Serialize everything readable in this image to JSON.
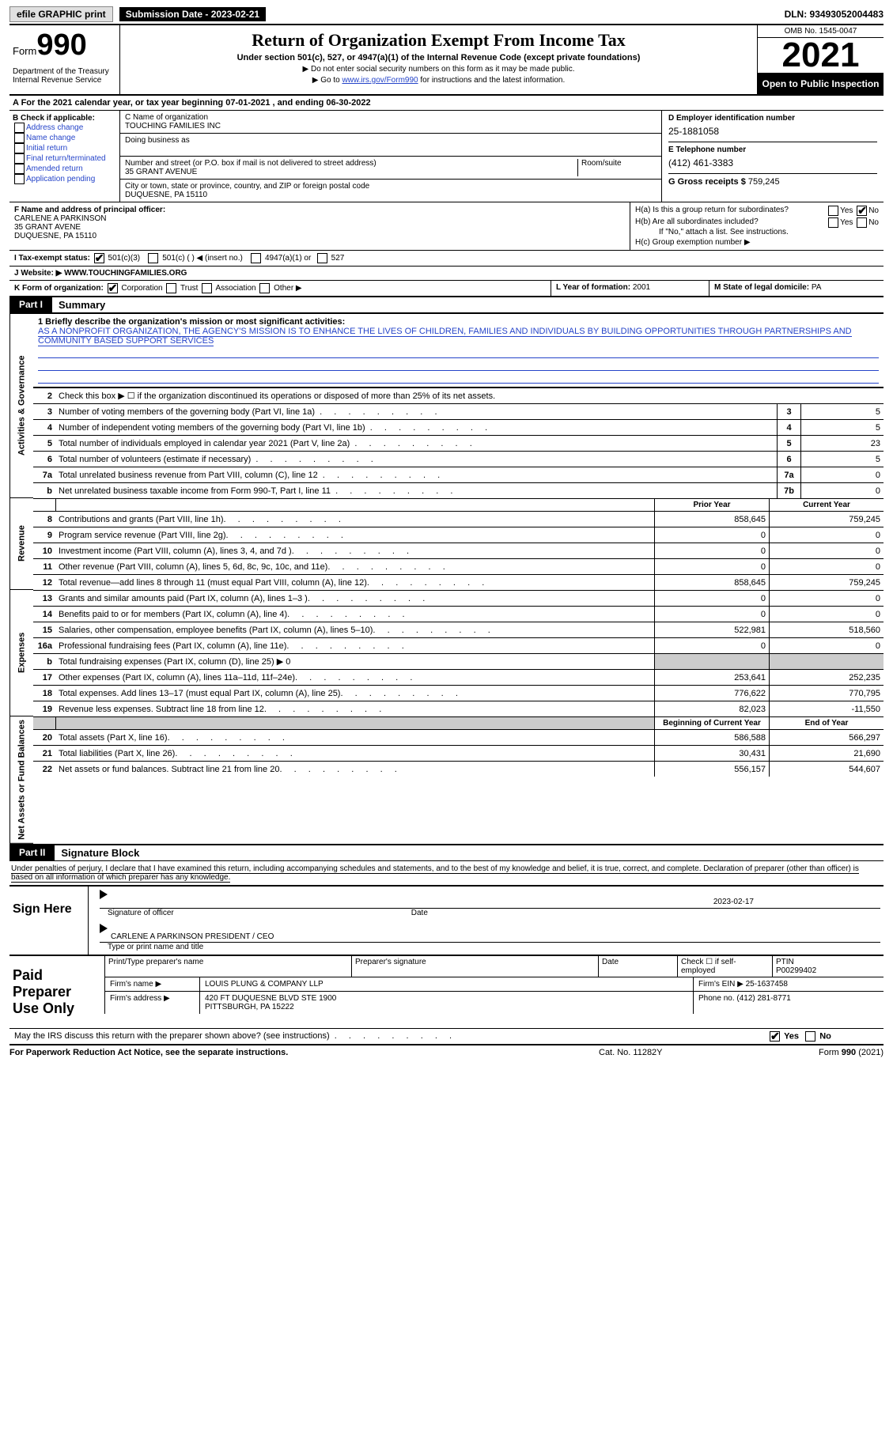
{
  "topbar": {
    "efile": "efile GRAPHIC print",
    "sub_label": "Submission Date - 2023-02-21",
    "dln": "DLN: 93493052004483"
  },
  "header": {
    "form": "Form",
    "num": "990",
    "dept": "Department of the Treasury Internal Revenue Service",
    "title": "Return of Organization Exempt From Income Tax",
    "sub1": "Under section 501(c), 527, or 4947(a)(1) of the Internal Revenue Code (except private foundations)",
    "sub2": "▶ Do not enter social security numbers on this form as it may be made public.",
    "sub3_pre": "▶ Go to ",
    "sub3_link": "www.irs.gov/Form990",
    "sub3_post": " for instructions and the latest information.",
    "omb": "OMB No. 1545-0047",
    "year": "2021",
    "open": "Open to Public Inspection"
  },
  "period": {
    "text_a": "A For the 2021 calendar year, or tax year beginning ",
    "begin": "07-01-2021",
    "text_b": " , and ending ",
    "end": "06-30-2022"
  },
  "colB": {
    "lbl": "B Check if applicable:",
    "i1": "Address change",
    "i2": "Name change",
    "i3": "Initial return",
    "i4": "Final return/terminated",
    "i5": "Amended return",
    "i6": "Application pending"
  },
  "colC": {
    "name_lbl": "C Name of organization",
    "name": "TOUCHING FAMILIES INC",
    "dba_lbl": "Doing business as",
    "addr_lbl": "Number and street (or P.O. box if mail is not delivered to street address)",
    "room_lbl": "Room/suite",
    "addr": "35 GRANT AVENUE",
    "city_lbl": "City or town, state or province, country, and ZIP or foreign postal code",
    "city": "DUQUESNE, PA  15110"
  },
  "colD": {
    "d_lbl": "D Employer identification number",
    "ein": "25-1881058",
    "e_lbl": "E Telephone number",
    "phone": "(412) 461-3383",
    "g_lbl": "G Gross receipts $ ",
    "gross": "759,245"
  },
  "princ": {
    "f_lbl": "F Name and address of principal officer:",
    "name": "CARLENE A PARKINSON",
    "addr1": "35 GRANT AVENE",
    "addr2": "DUQUESNE, PA  15110",
    "ha": "H(a)  Is this a group return for subordinates?",
    "hb": "H(b)  Are all subordinates included?",
    "hb_note": "If \"No,\" attach a list. See instructions.",
    "hc": "H(c)  Group exemption number ▶"
  },
  "taxex": {
    "lbl": "I   Tax-exempt status:",
    "o1": "501(c)(3)",
    "o2": "501(c) (  ) ◀ (insert no.)",
    "o3": "4947(a)(1) or",
    "o4": "527"
  },
  "website": {
    "lbl": "J   Website: ▶  ",
    "val": "WWW.TOUCHINGFAMILIES.ORG"
  },
  "korg": {
    "k": "K Form of organization:",
    "o1": "Corporation",
    "o2": "Trust",
    "o3": "Association",
    "o4": "Other ▶",
    "l": "L Year of formation: ",
    "lval": "2001",
    "m": "M State of legal domicile: ",
    "mval": "PA"
  },
  "part1": {
    "hdr": "Part I",
    "title": "Summary"
  },
  "mission": {
    "lbl": "1   Briefly describe the organization's mission or most significant activities:",
    "txt": "AS A NONPROFIT ORGANIZATION, THE AGENCY'S MISSION IS TO ENHANCE THE LIVES OF CHILDREN, FAMILIES AND INDIVIDUALS BY BUILDING OPPORTUNITIES THROUGH PARTNERSHIPS AND COMMUNITY BASED SUPPORT SERVICES"
  },
  "side": {
    "gov": "Activities & Governance",
    "rev": "Revenue",
    "exp": "Expenses",
    "net": "Net Assets or Fund Balances"
  },
  "lines_a": [
    {
      "n": "2",
      "d": "Check this box ▶ ☐ if the organization discontinued its operations or disposed of more than 25% of its net assets."
    },
    {
      "n": "3",
      "d": "Number of voting members of the governing body (Part VI, line 1a)",
      "b": "3",
      "v": "5"
    },
    {
      "n": "4",
      "d": "Number of independent voting members of the governing body (Part VI, line 1b)",
      "b": "4",
      "v": "5"
    },
    {
      "n": "5",
      "d": "Total number of individuals employed in calendar year 2021 (Part V, line 2a)",
      "b": "5",
      "v": "23"
    },
    {
      "n": "6",
      "d": "Total number of volunteers (estimate if necessary)",
      "b": "6",
      "v": "5"
    },
    {
      "n": "7a",
      "d": "Total unrelated business revenue from Part VIII, column (C), line 12",
      "b": "7a",
      "v": "0"
    },
    {
      "n": "b",
      "d": "Net unrelated business taxable income from Form 990-T, Part I, line 11",
      "b": "7b",
      "v": "0"
    }
  ],
  "hdr_py": "Prior Year",
  "hdr_cy": "Current Year",
  "lines_rev": [
    {
      "n": "8",
      "d": "Contributions and grants (Part VIII, line 1h)",
      "py": "858,645",
      "cy": "759,245"
    },
    {
      "n": "9",
      "d": "Program service revenue (Part VIII, line 2g)",
      "py": "0",
      "cy": "0"
    },
    {
      "n": "10",
      "d": "Investment income (Part VIII, column (A), lines 3, 4, and 7d )",
      "py": "0",
      "cy": "0"
    },
    {
      "n": "11",
      "d": "Other revenue (Part VIII, column (A), lines 5, 6d, 8c, 9c, 10c, and 11e)",
      "py": "0",
      "cy": "0"
    },
    {
      "n": "12",
      "d": "Total revenue—add lines 8 through 11 (must equal Part VIII, column (A), line 12)",
      "py": "858,645",
      "cy": "759,245"
    }
  ],
  "lines_exp": [
    {
      "n": "13",
      "d": "Grants and similar amounts paid (Part IX, column (A), lines 1–3 )",
      "py": "0",
      "cy": "0"
    },
    {
      "n": "14",
      "d": "Benefits paid to or for members (Part IX, column (A), line 4)",
      "py": "0",
      "cy": "0"
    },
    {
      "n": "15",
      "d": "Salaries, other compensation, employee benefits (Part IX, column (A), lines 5–10)",
      "py": "522,981",
      "cy": "518,560"
    },
    {
      "n": "16a",
      "d": "Professional fundraising fees (Part IX, column (A), line 11e)",
      "py": "0",
      "cy": "0"
    },
    {
      "n": "b",
      "d": "Total fundraising expenses (Part IX, column (D), line 25) ▶ 0",
      "grey": true
    },
    {
      "n": "17",
      "d": "Other expenses (Part IX, column (A), lines 11a–11d, 11f–24e)",
      "py": "253,641",
      "cy": "252,235"
    },
    {
      "n": "18",
      "d": "Total expenses. Add lines 13–17 (must equal Part IX, column (A), line 25)",
      "py": "776,622",
      "cy": "770,795"
    },
    {
      "n": "19",
      "d": "Revenue less expenses. Subtract line 18 from line 12",
      "py": "82,023",
      "cy": "-11,550"
    }
  ],
  "hdr_bcy": "Beginning of Current Year",
  "hdr_eoy": "End of Year",
  "lines_net": [
    {
      "n": "20",
      "d": "Total assets (Part X, line 16)",
      "py": "586,588",
      "cy": "566,297"
    },
    {
      "n": "21",
      "d": "Total liabilities (Part X, line 26)",
      "py": "30,431",
      "cy": "21,690"
    },
    {
      "n": "22",
      "d": "Net assets or fund balances. Subtract line 21 from line 20",
      "py": "556,157",
      "cy": "544,607"
    }
  ],
  "part2": {
    "hdr": "Part II",
    "title": "Signature Block"
  },
  "decl": "Under penalties of perjury, I declare that I have examined this return, including accompanying schedules and statements, and to the best of my knowledge and belief, it is true, correct, and complete. Declaration of preparer (other than officer) is based on all information of which preparer has any knowledge.",
  "sign": {
    "lab": "Sign Here",
    "sig_of": "Signature of officer",
    "date_lbl": "Date",
    "date": "2023-02-17",
    "name": "CARLENE A PARKINSON  PRESIDENT / CEO",
    "type": "Type or print name and title"
  },
  "paid": {
    "lab": "Paid Preparer Use Only",
    "h1": "Print/Type preparer's name",
    "h2": "Preparer's signature",
    "h3": "Date",
    "h4": "Check ☐ if self-employed",
    "h5_lbl": "PTIN",
    "h5": "P00299402",
    "firm_lbl": "Firm's name    ▶",
    "firm": "LOUIS PLUNG & COMPANY LLP",
    "ein_lbl": "Firm's EIN ▶ ",
    "ein": "25-1637458",
    "addr_lbl": "Firm's address ▶",
    "addr1": "420 FT DUQUESNE BLVD STE 1900",
    "addr2": "PITTSBURGH, PA  15222",
    "ph_lbl": "Phone no. ",
    "ph": "(412) 281-8771"
  },
  "may": {
    "q": "May the IRS discuss this return with the preparer shown above? (see instructions)",
    "yes": "Yes",
    "no": "No"
  },
  "footer": {
    "l": "For Paperwork Reduction Act Notice, see the separate instructions.",
    "c": "Cat. No. 11282Y",
    "r": "Form 990 (2021)"
  }
}
